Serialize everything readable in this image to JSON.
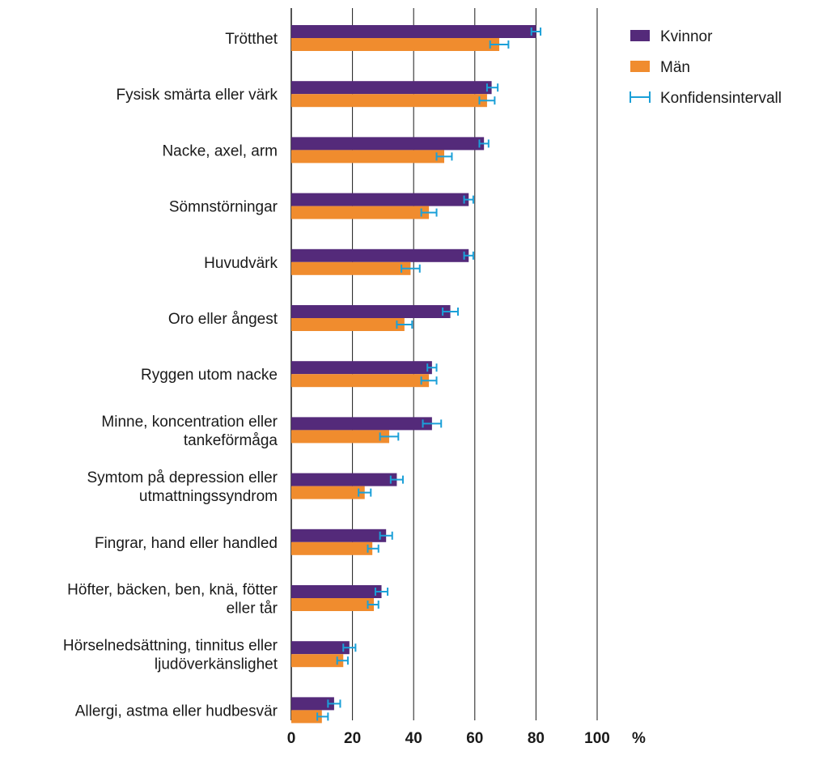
{
  "colors": {
    "kvinnor": "#542a7a",
    "man": "#f08c2e",
    "ci": "#1ba0d8",
    "grid": "#1a1a1a"
  },
  "chart_data": {
    "type": "bar",
    "orientation": "horizontal",
    "title": "",
    "xlabel": "",
    "ylabel": "",
    "unit": "%",
    "xlim": [
      0,
      100
    ],
    "xticks": [
      "0",
      "20",
      "40",
      "60",
      "80",
      "100"
    ],
    "legend_position": "top-right",
    "legend": [
      {
        "key": "kvinnor",
        "label": "Kvinnor"
      },
      {
        "key": "man",
        "label": "Män"
      },
      {
        "key": "ci",
        "label": "Konfidensintervall"
      }
    ],
    "categories": [
      [
        "Trötthet"
      ],
      [
        "Fysisk smärta eller värk"
      ],
      [
        "Nacke, axel, arm"
      ],
      [
        "Sömnstörningar"
      ],
      [
        "Huvudvärk"
      ],
      [
        "Oro eller ångest"
      ],
      [
        "Ryggen utom nacke"
      ],
      [
        "Minne, koncentration eller",
        "tankeförmåga"
      ],
      [
        "Symtom på depression eller",
        "utmattningssyndrom"
      ],
      [
        "Fingrar, hand eller handled"
      ],
      [
        "Höfter, bäcken, ben, knä, fötter",
        "eller tår"
      ],
      [
        "Hörselnedsättning, tinnitus eller",
        "ljudöverkänslighet"
      ],
      [
        "Allergi, astma eller hudbesvär"
      ]
    ],
    "series": [
      {
        "name": "Kvinnor",
        "key": "kvinnor",
        "values": [
          80,
          65.5,
          63,
          58,
          58,
          52,
          46,
          46,
          34.5,
          31,
          29.5,
          19,
          14
        ],
        "ci": [
          [
            78.5,
            81.5
          ],
          [
            64,
            67.5
          ],
          [
            61.5,
            64.5
          ],
          [
            56.5,
            59.5
          ],
          [
            56.5,
            59.5
          ],
          [
            49.5,
            54.5
          ],
          [
            44.5,
            47.5
          ],
          [
            43,
            49
          ],
          [
            32.5,
            36.5
          ],
          [
            29,
            33
          ],
          [
            27.5,
            31.5
          ],
          [
            17,
            21
          ],
          [
            12,
            16
          ]
        ]
      },
      {
        "name": "Män",
        "key": "man",
        "values": [
          68,
          64,
          50,
          45,
          39,
          37,
          45,
          32,
          24,
          26.5,
          27,
          17,
          10
        ],
        "ci": [
          [
            65,
            71
          ],
          [
            61.5,
            66.5
          ],
          [
            47.5,
            52.5
          ],
          [
            42.5,
            47.5
          ],
          [
            36,
            42
          ],
          [
            34.5,
            39.5
          ],
          [
            42.5,
            47.5
          ],
          [
            29,
            35
          ],
          [
            22,
            26
          ],
          [
            25,
            28.5
          ],
          [
            25,
            28.5
          ],
          [
            15,
            18.5
          ],
          [
            8.5,
            12
          ]
        ]
      }
    ]
  }
}
